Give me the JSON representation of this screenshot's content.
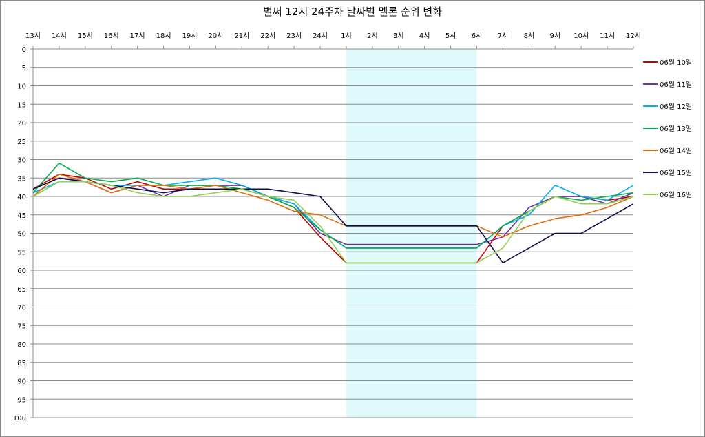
{
  "chart_data": {
    "type": "line",
    "title": "벌써 12시 24주차 날짜별 멜론 순위 변화",
    "xlabel": "",
    "ylabel": "",
    "categories": [
      "13시",
      "14시",
      "15시",
      "16시",
      "17시",
      "18시",
      "19시",
      "20시",
      "21시",
      "22시",
      "23시",
      "24시",
      "1시",
      "2시",
      "3시",
      "4시",
      "5시",
      "6시",
      "7시",
      "8시",
      "9시",
      "10시",
      "11시",
      "12시"
    ],
    "y_ticks": [
      "0",
      "5",
      "10",
      "15",
      "20",
      "25",
      "30",
      "35",
      "40",
      "45",
      "50",
      "55",
      "60",
      "65",
      "70",
      "75",
      "80",
      "85",
      "90",
      "95",
      "100"
    ],
    "ylim": [
      0,
      100
    ],
    "y_inverted": true,
    "x_axis_position": "top",
    "grid": true,
    "legend_position": "right",
    "highlight_band": {
      "from": "1시",
      "to": "6시",
      "color": "#e0fafc"
    },
    "series": [
      {
        "name": "06월 10일",
        "color": "#c00000",
        "values": [
          38,
          34,
          35,
          38,
          36,
          38,
          38,
          37,
          37,
          40,
          43,
          51,
          58,
          58,
          58,
          58,
          58,
          58,
          48,
          44,
          40,
          40,
          41,
          40
        ]
      },
      {
        "name": "06월 11일",
        "color": "#7030a0",
        "values": [
          38,
          35,
          36,
          39,
          37,
          40,
          37,
          37,
          37,
          40,
          42,
          50,
          53,
          53,
          53,
          53,
          53,
          53,
          51,
          43,
          40,
          40,
          42,
          39
        ]
      },
      {
        "name": "06월 12일",
        "color": "#00b0f0",
        "values": [
          39,
          36,
          36,
          37,
          37,
          37,
          36,
          35,
          37,
          40,
          42,
          49,
          54,
          54,
          54,
          54,
          54,
          54,
          48,
          45,
          37,
          40,
          41,
          37
        ]
      },
      {
        "name": "06월 13일",
        "color": "#00b050",
        "values": [
          39,
          31,
          35,
          36,
          35,
          37,
          37,
          37,
          38,
          40,
          43,
          49,
          54,
          54,
          54,
          54,
          54,
          54,
          48,
          44,
          40,
          41,
          40,
          39
        ]
      },
      {
        "name": "06월 14일",
        "color": "#e46c0a",
        "values": [
          40,
          34,
          36,
          39,
          37,
          37,
          38,
          37,
          39,
          41,
          44,
          45,
          48,
          48,
          48,
          48,
          48,
          48,
          51,
          48,
          46,
          45,
          43,
          40
        ]
      },
      {
        "name": "06월 15일",
        "color": "#0c0c4e",
        "values": [
          38,
          35,
          36,
          37,
          38,
          39,
          38,
          38,
          38,
          38,
          39,
          40,
          48,
          48,
          48,
          48,
          48,
          48,
          58,
          54,
          50,
          50,
          46,
          42
        ]
      },
      {
        "name": "06월 16일",
        "color": "#92d050",
        "values": [
          40,
          36,
          36,
          37,
          39,
          40,
          40,
          39,
          38,
          40,
          41,
          48,
          58,
          58,
          58,
          58,
          58,
          58,
          54,
          44,
          40,
          42,
          42,
          40
        ]
      }
    ]
  }
}
